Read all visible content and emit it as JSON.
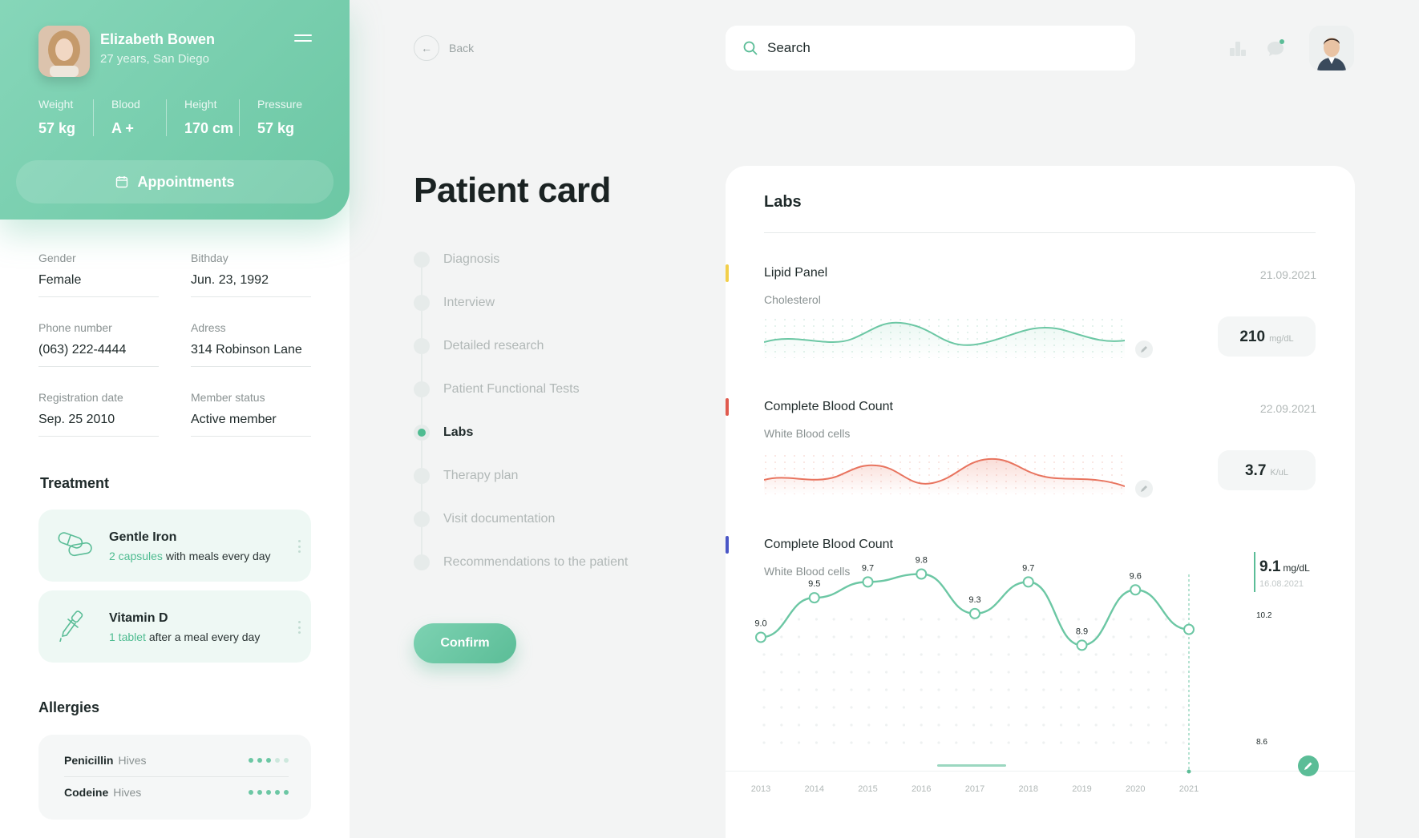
{
  "profile": {
    "name": "Elizabeth Bowen",
    "meta": "27 years, San Diego",
    "stats": [
      {
        "label": "Weight",
        "value": "57 kg"
      },
      {
        "label": "Blood",
        "value": "A +"
      },
      {
        "label": "Height",
        "value": "170 cm"
      },
      {
        "label": "Pressure",
        "value": "57 kg"
      }
    ],
    "appointments_label": "Appointments"
  },
  "info": [
    {
      "label": "Gender",
      "value": "Female"
    },
    {
      "label": "Bithday",
      "value": "Jun. 23, 1992"
    },
    {
      "label": "Phone number",
      "value": "(063) 222-4444"
    },
    {
      "label": "Adress",
      "value": "314 Robinson Lane"
    },
    {
      "label": "Registration date",
      "value": "Sep. 25 2010"
    },
    {
      "label": "Member status",
      "value": "Active member"
    }
  ],
  "treatment": {
    "title": "Treatment",
    "items": [
      {
        "name": "Gentle Iron",
        "highlight": "2 capsules",
        "rest": " with meals every day",
        "icon": "pill-icon"
      },
      {
        "name": "Vitamin D",
        "highlight": "1 tablet",
        "rest": " after a meal every day",
        "icon": "dropper-icon"
      }
    ]
  },
  "allergies": {
    "title": "Allergies",
    "items": [
      {
        "name": "Penicillin",
        "reaction": "Hives",
        "severity": 3
      },
      {
        "name": "Codeine",
        "reaction": "Hives",
        "severity": 5
      }
    ]
  },
  "topbar": {
    "back_label": "Back",
    "search_placeholder": "Search",
    "icons": [
      "stats-icon",
      "chat-icon"
    ]
  },
  "main": {
    "title": "Patient card",
    "steps": [
      {
        "label": "Diagnosis",
        "active": false
      },
      {
        "label": "Interview",
        "active": false
      },
      {
        "label": "Detailed research",
        "active": false
      },
      {
        "label": "Patient Functional Tests",
        "active": false
      },
      {
        "label": "Labs",
        "active": true
      },
      {
        "label": "Therapy plan",
        "active": false
      },
      {
        "label": "Visit documentation",
        "active": false
      },
      {
        "label": "Recommendations to the patient",
        "active": false
      }
    ],
    "confirm_label": "Confirm"
  },
  "labs": {
    "title": "Labs",
    "panels": [
      {
        "name": "Lipid Panel",
        "sub": "Cholesterol",
        "date": "21.09.2021",
        "value": "210",
        "unit": "mg/dL",
        "color": "#f2cf4a"
      },
      {
        "name": "Complete Blood  Count",
        "sub": "White Blood cells",
        "date": "22.09.2021",
        "value": "3.7",
        "unit": "K/uL",
        "color": "#e05a4e"
      },
      {
        "name": "Complete Blood  Count",
        "sub": "White Blood cells",
        "color": "#4a56c6"
      }
    ],
    "readout": {
      "value": "9.1",
      "unit": "mg/dL",
      "date": "16.08.2021"
    },
    "y_max_label": "10.2",
    "y_min_label": "8.6"
  },
  "chart_data": {
    "type": "line",
    "title": "",
    "x": [
      "2013",
      "2014",
      "2015",
      "2016",
      "2017",
      "2018",
      "2019",
      "2020",
      "2021"
    ],
    "values": [
      9.0,
      9.5,
      9.7,
      9.8,
      9.3,
      9.7,
      8.9,
      9.6,
      9.1
    ],
    "data_labels": [
      "9.0",
      "9.5",
      "9.7",
      "9.8",
      "9.3",
      "9.7",
      "8.9",
      "9.6",
      ""
    ],
    "ylim": [
      8.6,
      10.2
    ],
    "color": "#6cc7a4",
    "grid": "dotted"
  }
}
